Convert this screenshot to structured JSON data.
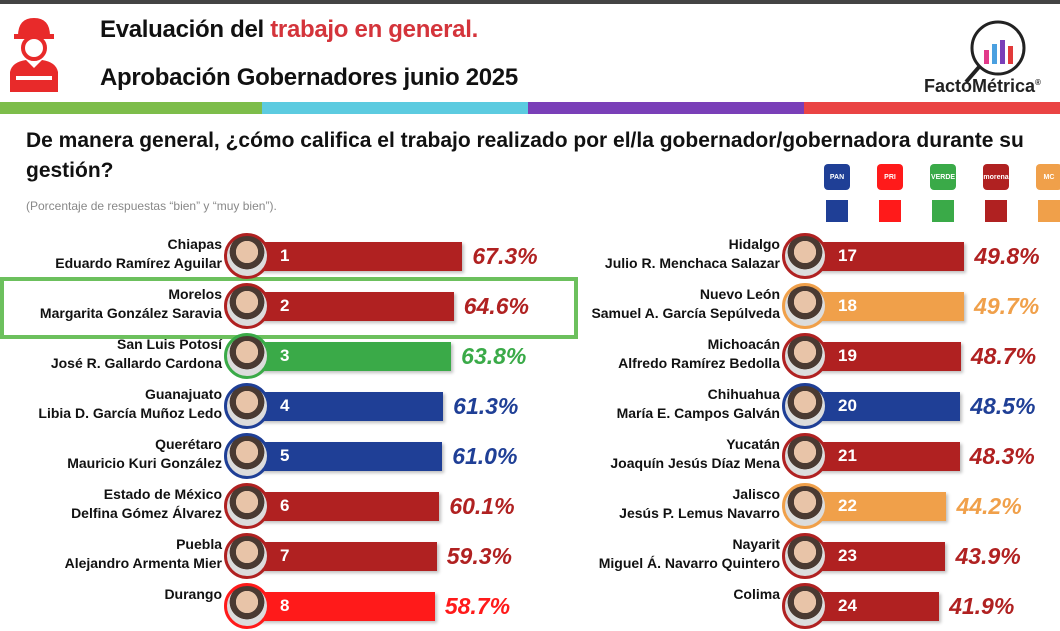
{
  "header": {
    "title_prefix": "Evaluación del ",
    "title_highlight": "trabajo en general.",
    "subtitle": "Aprobación Gobernadores junio 2025",
    "brand": "FactoMétrica",
    "brand_mark": "®"
  },
  "colors": {
    "stripes": [
      "#7dbd4a",
      "#5ccbe0",
      "#7a3fb8",
      "#ea4444"
    ],
    "PAN": "#1f3f96",
    "PRI": "#ff1a1a",
    "PVEM": "#3aaa48",
    "MORENA": "#b02121",
    "MC": "#f0a04a",
    "highlight": "#6cc05d"
  },
  "parties": [
    {
      "key": "PAN",
      "logo": "PAN"
    },
    {
      "key": "PRI",
      "logo": "PRI"
    },
    {
      "key": "PVEM",
      "logo": "VERDE"
    },
    {
      "key": "MORENA",
      "logo": "morena"
    },
    {
      "key": "MC",
      "logo": "MC"
    }
  ],
  "chart_data": {
    "type": "bar",
    "title": "De manera general, ¿cómo califica el trabajo realizado por el/la gobernador/gobernadora durante su gestión?",
    "subtitle": "(Porcentaje de respuestas “bien” y “muy bien”).",
    "unit": "%",
    "highlighted_rank": 2,
    "left": [
      {
        "rank": "1",
        "state": "Chiapas",
        "name": "Eduardo Ramírez Aguilar",
        "value": 67.3,
        "label": "67.3%",
        "party": "MORENA"
      },
      {
        "rank": "2",
        "state": "Morelos",
        "name": "Margarita González Saravia",
        "value": 64.6,
        "label": "64.6%",
        "party": "MORENA"
      },
      {
        "rank": "3",
        "state": "San Luis Potosí",
        "name": "José R. Gallardo Cardona",
        "value": 63.8,
        "label": "63.8%",
        "party": "PVEM"
      },
      {
        "rank": "4",
        "state": "Guanajuato",
        "name": "Libia D. García Muñoz Ledo",
        "value": 61.3,
        "label": "61.3%",
        "party": "PAN"
      },
      {
        "rank": "5",
        "state": "Querétaro",
        "name": "Mauricio Kuri González",
        "value": 61.0,
        "label": "61.0%",
        "party": "PAN"
      },
      {
        "rank": "6",
        "state": "Estado de México",
        "name": "Delfina Gómez Álvarez",
        "value": 60.1,
        "label": "60.1%",
        "party": "MORENA"
      },
      {
        "rank": "7",
        "state": "Puebla",
        "name": "Alejandro Armenta Mier",
        "value": 59.3,
        "label": "59.3%",
        "party": "MORENA"
      },
      {
        "rank": "8",
        "state": "Durango",
        "name": "",
        "value": 58.7,
        "label": "58.7%",
        "party": "PRI"
      }
    ],
    "right": [
      {
        "rank": "17",
        "state": "Hidalgo",
        "name": "Julio R. Menchaca Salazar",
        "value": 49.8,
        "label": "49.8%",
        "party": "MORENA"
      },
      {
        "rank": "18",
        "state": "Nuevo León",
        "name": "Samuel A. García Sepúlveda",
        "value": 49.7,
        "label": "49.7%",
        "party": "MC"
      },
      {
        "rank": "19",
        "state": "Michoacán",
        "name": "Alfredo Ramírez Bedolla",
        "value": 48.7,
        "label": "48.7%",
        "party": "MORENA"
      },
      {
        "rank": "20",
        "state": "Chihuahua",
        "name": "María E. Campos Galván",
        "value": 48.5,
        "label": "48.5%",
        "party": "PAN"
      },
      {
        "rank": "21",
        "state": "Yucatán",
        "name": "Joaquín Jesús Díaz Mena",
        "value": 48.3,
        "label": "48.3%",
        "party": "MORENA"
      },
      {
        "rank": "22",
        "state": "Jalisco",
        "name": "Jesús P. Lemus Navarro",
        "value": 44.2,
        "label": "44.2%",
        "party": "MC"
      },
      {
        "rank": "23",
        "state": "Nayarit",
        "name": "Miguel Á. Navarro Quintero",
        "value": 43.9,
        "label": "43.9%",
        "party": "MORENA"
      },
      {
        "rank": "24",
        "state": "Colima",
        "name": "",
        "value": 41.9,
        "label": "41.9%",
        "party": "MORENA"
      }
    ]
  }
}
